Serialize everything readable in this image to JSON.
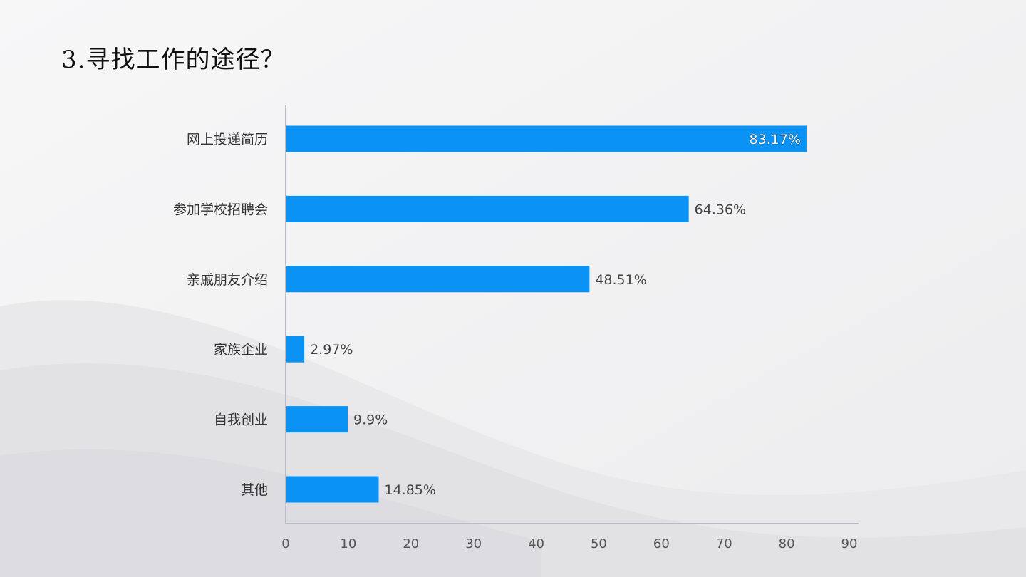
{
  "slide": {
    "title": "3.寻找工作的途径？"
  },
  "colors": {
    "bar": "#0a93f5",
    "axis": "#b8bcc6",
    "background": "#f3f3f4"
  },
  "chart_data": {
    "type": "bar",
    "orientation": "horizontal",
    "categories": [
      "网上投递简历",
      "参加学校招聘会",
      "亲戚朋友介绍",
      "家族企业",
      "自我创业",
      "其他"
    ],
    "values": [
      83.17,
      64.36,
      48.51,
      2.97,
      9.9,
      14.85
    ],
    "value_labels": [
      "83.17%",
      "64.36%",
      "48.51%",
      "2.97%",
      "9.9%",
      "14.85%"
    ],
    "xlim": [
      0,
      90
    ],
    "x_ticks": [
      "0",
      "10",
      "20",
      "30",
      "40",
      "50",
      "60",
      "70",
      "80",
      "90"
    ],
    "grid": false,
    "legend": "none"
  }
}
